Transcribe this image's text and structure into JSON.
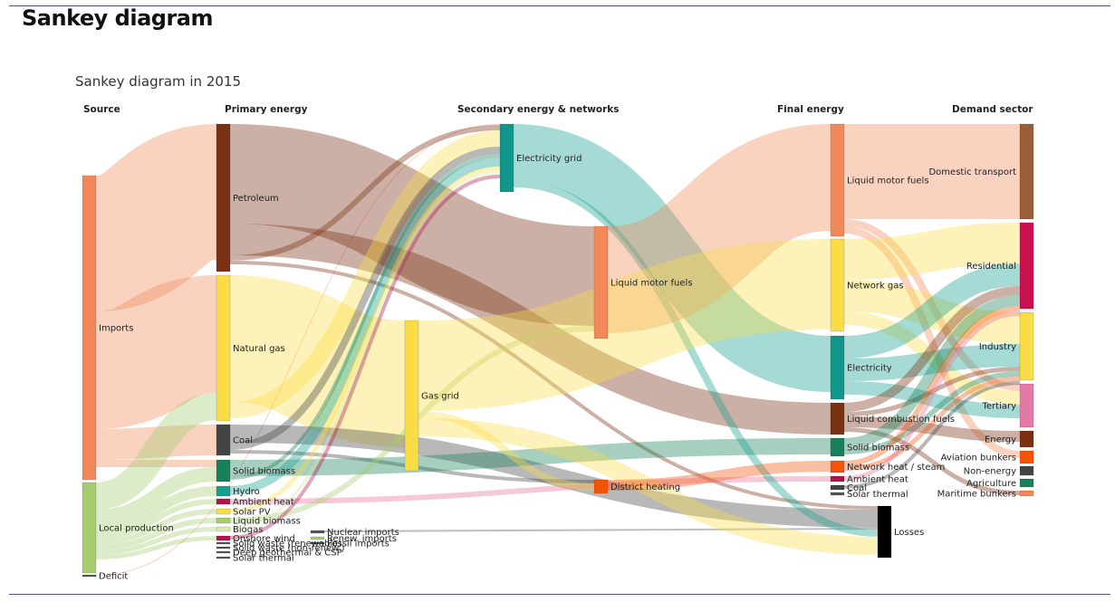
{
  "page": {
    "title": "Sankey diagram",
    "subtitle": "Sankey diagram in 2015"
  },
  "columns": [
    "Source",
    "Primary energy",
    "Secondary energy & networks",
    "Final energy",
    "Demand sector"
  ],
  "nodes": [
    {
      "id": "imports",
      "label": "Imports",
      "color": "#F0885A"
    },
    {
      "id": "local",
      "label": "Local production",
      "color": "#A6CC6E"
    },
    {
      "id": "deficit",
      "label": "Deficit",
      "color": "#555555"
    },
    {
      "id": "petroleum",
      "label": "Petroleum",
      "color": "#7A3013"
    },
    {
      "id": "natgas",
      "label": "Natural gas",
      "color": "#F9DC46"
    },
    {
      "id": "coal",
      "label": "Coal",
      "color": "#444444"
    },
    {
      "id": "solidbio",
      "label": "Solid biomass",
      "color": "#18805A"
    },
    {
      "id": "hydro",
      "label": "Hydro",
      "color": "#16A090"
    },
    {
      "id": "ambient",
      "label": "Ambient heat",
      "color": "#B0144C"
    },
    {
      "id": "solarpv",
      "label": "Solar PV",
      "color": "#F9DC46"
    },
    {
      "id": "liqbio",
      "label": "Liquid biomass",
      "color": "#A6CC6E"
    },
    {
      "id": "biogas",
      "label": "Biogas",
      "color": "#D8E8B0"
    },
    {
      "id": "onshore",
      "label": "Onshore wind",
      "color": "#B0144C"
    },
    {
      "id": "swren",
      "label": "Solid waste (renewable)",
      "color": "#555555"
    },
    {
      "id": "swnonren",
      "label": "Solid waste (non-renew.)",
      "color": "#555555"
    },
    {
      "id": "deepgeo",
      "label": "Deep geothermal & CSP",
      "color": "#555555"
    },
    {
      "id": "solarth1",
      "label": "Solar thermal",
      "color": "#555555"
    },
    {
      "id": "nuclear",
      "label": "Nuclear imports",
      "color": "#555555"
    },
    {
      "id": "renewimp",
      "label": "Renew. imports",
      "color": "#A6CC6E"
    },
    {
      "id": "fossilimp",
      "label": "Fossil imports",
      "color": "#555555"
    },
    {
      "id": "elgrid",
      "label": "Electricity grid",
      "color": "#12958A"
    },
    {
      "id": "lmf2",
      "label": "Liquid motor fuels",
      "color": "#F0885A"
    },
    {
      "id": "gasgrid",
      "label": "Gas grid",
      "color": "#F9DC46"
    },
    {
      "id": "distheat",
      "label": "District heating",
      "color": "#F2550A"
    },
    {
      "id": "lmf",
      "label": "Liquid motor fuels",
      "color": "#F0885A"
    },
    {
      "id": "netgas",
      "label": "Network gas",
      "color": "#F9DC46"
    },
    {
      "id": "electricity",
      "label": "Electricity",
      "color": "#12958A"
    },
    {
      "id": "liqcomb",
      "label": "Liquid combustion fuels",
      "color": "#7A3013"
    },
    {
      "id": "sbfinal",
      "label": "Solid biomass",
      "color": "#18805A"
    },
    {
      "id": "netheat",
      "label": "Network heat / steam",
      "color": "#F2550A"
    },
    {
      "id": "ambfinal",
      "label": "Ambient heat",
      "color": "#B0144C"
    },
    {
      "id": "coalfinal",
      "label": "Coal",
      "color": "#444444"
    },
    {
      "id": "solarth2",
      "label": "Solar thermal",
      "color": "#555555"
    },
    {
      "id": "losses",
      "label": "Losses",
      "color": "#000000"
    },
    {
      "id": "domtrans",
      "label": "Domestic transport",
      "color": "#9C5E3A"
    },
    {
      "id": "residential",
      "label": "Residential",
      "color": "#C91150"
    },
    {
      "id": "industry",
      "label": "Industry",
      "color": "#F9DC46"
    },
    {
      "id": "tertiary",
      "label": "Tertiary",
      "color": "#E27AA6"
    },
    {
      "id": "energy",
      "label": "Energy",
      "color": "#7A3013"
    },
    {
      "id": "aviation",
      "label": "Aviation bunkers",
      "color": "#F2550A"
    },
    {
      "id": "nonenergy",
      "label": "Non-energy",
      "color": "#444444"
    },
    {
      "id": "agri",
      "label": "Agriculture",
      "color": "#18805A"
    },
    {
      "id": "maritime",
      "label": "Maritime bunkers",
      "color": "#F0885A"
    }
  ],
  "links": [
    {
      "s": "imports",
      "t": "petroleum",
      "color": "#F0885A"
    },
    {
      "s": "imports",
      "t": "natgas",
      "color": "#F0885A"
    },
    {
      "s": "imports",
      "t": "coal",
      "color": "#F0885A"
    },
    {
      "s": "imports",
      "t": "solidbio",
      "color": "#F0885A"
    },
    {
      "s": "local",
      "t": "natgas",
      "color": "#A6CC6E"
    },
    {
      "s": "local",
      "t": "solidbio",
      "color": "#A6CC6E"
    },
    {
      "s": "local",
      "t": "hydro",
      "color": "#A6CC6E"
    },
    {
      "s": "local",
      "t": "ambient",
      "color": "#A6CC6E"
    },
    {
      "s": "local",
      "t": "solarpv",
      "color": "#A6CC6E"
    },
    {
      "s": "local",
      "t": "liqbio",
      "color": "#A6CC6E"
    },
    {
      "s": "local",
      "t": "biogas",
      "color": "#A6CC6E"
    },
    {
      "s": "local",
      "t": "onshore",
      "color": "#A6CC6E"
    },
    {
      "s": "deficit",
      "t": "elgrid",
      "color": "#F0885A"
    },
    {
      "s": "petroleum",
      "t": "lmf2",
      "color": "#7A3013"
    },
    {
      "s": "petroleum",
      "t": "liqcomb",
      "color": "#7A3013"
    },
    {
      "s": "petroleum",
      "t": "elgrid",
      "color": "#7A3013"
    },
    {
      "s": "petroleum",
      "t": "losses",
      "color": "#7A3013"
    },
    {
      "s": "natgas",
      "t": "gasgrid",
      "color": "#F9DC46"
    },
    {
      "s": "natgas",
      "t": "elgrid",
      "color": "#F9DC46"
    },
    {
      "s": "coal",
      "t": "losses",
      "color": "#444444"
    },
    {
      "s": "coal",
      "t": "elgrid",
      "color": "#444444"
    },
    {
      "s": "coal",
      "t": "distheat",
      "color": "#444444"
    },
    {
      "s": "solidbio",
      "t": "sbfinal",
      "color": "#18805A"
    },
    {
      "s": "solidbio",
      "t": "elgrid",
      "color": "#18805A"
    },
    {
      "s": "hydro",
      "t": "elgrid",
      "color": "#16A090"
    },
    {
      "s": "ambient",
      "t": "ambfinal",
      "color": "#E8709A"
    },
    {
      "s": "solarpv",
      "t": "elgrid",
      "color": "#F9DC46"
    },
    {
      "s": "liqbio",
      "t": "lmf2",
      "color": "#A6CC6E"
    },
    {
      "s": "biogas",
      "t": "elgrid",
      "color": "#D8E8B0"
    },
    {
      "s": "onshore",
      "t": "elgrid",
      "color": "#B0144C"
    },
    {
      "s": "nuclear",
      "t": "losses",
      "color": "#555555"
    },
    {
      "s": "elgrid",
      "t": "electricity",
      "color": "#16A090"
    },
    {
      "s": "elgrid",
      "t": "losses",
      "color": "#16A090"
    },
    {
      "s": "lmf2",
      "t": "lmf",
      "color": "#F0885A"
    },
    {
      "s": "gasgrid",
      "t": "netgas",
      "color": "#F9DC46"
    },
    {
      "s": "gasgrid",
      "t": "distheat",
      "color": "#F9DC46"
    },
    {
      "s": "gasgrid",
      "t": "losses",
      "color": "#F9DC46"
    },
    {
      "s": "distheat",
      "t": "netheat",
      "color": "#F2550A"
    },
    {
      "s": "lmf",
      "t": "domtrans",
      "color": "#F0885A"
    },
    {
      "s": "lmf",
      "t": "tertiary",
      "color": "#F0885A"
    },
    {
      "s": "lmf",
      "t": "aviation",
      "color": "#F0885A"
    },
    {
      "s": "netgas",
      "t": "residential",
      "color": "#F9DC46"
    },
    {
      "s": "netgas",
      "t": "industry",
      "color": "#F9DC46"
    },
    {
      "s": "netgas",
      "t": "tertiary",
      "color": "#F9DC46"
    },
    {
      "s": "electricity",
      "t": "residential",
      "color": "#16A090"
    },
    {
      "s": "electricity",
      "t": "industry",
      "color": "#16A090"
    },
    {
      "s": "electricity",
      "t": "tertiary",
      "color": "#16A090"
    },
    {
      "s": "liqcomb",
      "t": "residential",
      "color": "#7A3013"
    },
    {
      "s": "liqcomb",
      "t": "industry",
      "color": "#7A3013"
    },
    {
      "s": "liqcomb",
      "t": "energy",
      "color": "#7A3013"
    },
    {
      "s": "liqcomb",
      "t": "maritime",
      "color": "#7A3013"
    },
    {
      "s": "sbfinal",
      "t": "residential",
      "color": "#18805A"
    },
    {
      "s": "sbfinal",
      "t": "industry",
      "color": "#18805A"
    },
    {
      "s": "netheat",
      "t": "residential",
      "color": "#F2550A"
    },
    {
      "s": "netheat",
      "t": "industry",
      "color": "#F2550A"
    },
    {
      "s": "ambfinal",
      "t": "residential",
      "color": "#E8709A"
    },
    {
      "s": "coalfinal",
      "t": "industry",
      "color": "#444444"
    }
  ]
}
